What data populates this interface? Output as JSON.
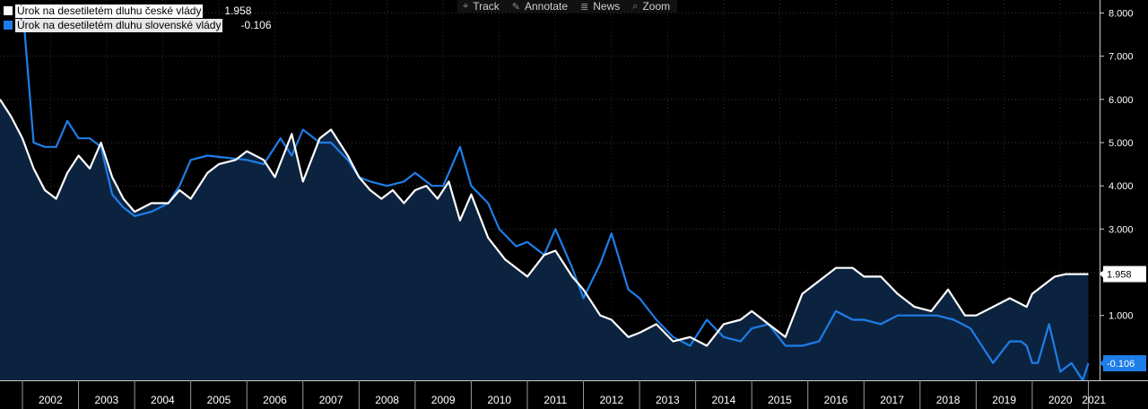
{
  "toolbar": {
    "items": [
      {
        "label": "Track",
        "icon": "crosshair-icon",
        "glyph": "⌖"
      },
      {
        "label": "Annotate",
        "icon": "pencil-icon",
        "glyph": "✎"
      },
      {
        "label": "News",
        "icon": "news-icon",
        "glyph": "≣"
      },
      {
        "label": "Zoom",
        "icon": "search-icon",
        "glyph": "⌕"
      }
    ]
  },
  "legend": [
    {
      "name": "Úrok na desetiletém dluhu české vlády",
      "value": "1.958",
      "color": "#ffffff"
    },
    {
      "name": "Úrok na desetiletém dluhu slovenské vlády",
      "value": "-0.106",
      "color": "#1e7ee8"
    }
  ],
  "chart_data": {
    "type": "line",
    "title": "",
    "xlabel": "",
    "ylabel": "",
    "x_range": [
      2001.6,
      2021.2
    ],
    "ylim": [
      -0.5,
      8.3
    ],
    "y_ticks": [
      "8.000",
      "7.000",
      "6.000",
      "5.000",
      "4.000",
      "3.000",
      "2.000",
      "1.000"
    ],
    "y_tick_values": [
      8,
      7,
      6,
      5,
      4,
      3,
      2,
      1
    ],
    "x_ticks": [
      "2002",
      "2003",
      "2004",
      "2005",
      "2006",
      "2007",
      "2008",
      "2009",
      "2010",
      "2011",
      "2012",
      "2013",
      "2014",
      "2015",
      "2016",
      "2017",
      "2018",
      "2019",
      "2020",
      "2021"
    ],
    "last_value_labels": [
      "1.958",
      "-0.106"
    ],
    "grid": true,
    "area_fill_color": "#0c2340",
    "series": [
      {
        "name": "Úrok na desetiletém dluhu české vlády",
        "color": "#ffffff",
        "x": [
          2001.6,
          2001.8,
          2002.0,
          2002.2,
          2002.4,
          2002.6,
          2002.8,
          2003.0,
          2003.2,
          2003.4,
          2003.6,
          2003.8,
          2004.0,
          2004.3,
          2004.6,
          2004.8,
          2005.0,
          2005.3,
          2005.5,
          2005.8,
          2006.0,
          2006.3,
          2006.5,
          2006.8,
          2007.0,
          2007.3,
          2007.5,
          2007.8,
          2008.0,
          2008.2,
          2008.4,
          2008.6,
          2008.8,
          2009.0,
          2009.2,
          2009.4,
          2009.6,
          2009.8,
          2010.0,
          2010.3,
          2010.6,
          2010.8,
          2011.0,
          2011.3,
          2011.5,
          2011.8,
          2012.0,
          2012.3,
          2012.5,
          2012.8,
          2013.0,
          2013.3,
          2013.6,
          2013.9,
          2014.2,
          2014.5,
          2014.8,
          2015.0,
          2015.3,
          2015.6,
          2015.9,
          2016.2,
          2016.5,
          2016.8,
          2017.0,
          2017.3,
          2017.6,
          2017.9,
          2018.2,
          2018.5,
          2018.8,
          2019.0,
          2019.3,
          2019.6,
          2019.9,
          2020.0,
          2020.2,
          2020.4,
          2020.6,
          2020.8,
          2020.95,
          2021.0
        ],
        "values": [
          6.0,
          5.6,
          5.1,
          4.4,
          3.9,
          3.7,
          4.3,
          4.7,
          4.4,
          5.0,
          4.2,
          3.7,
          3.4,
          3.6,
          3.6,
          3.9,
          3.7,
          4.3,
          4.5,
          4.6,
          4.8,
          4.6,
          4.2,
          5.2,
          4.1,
          5.1,
          5.3,
          4.7,
          4.2,
          3.9,
          3.7,
          3.9,
          3.6,
          3.9,
          4.0,
          3.7,
          4.1,
          3.2,
          3.8,
          2.8,
          2.3,
          2.1,
          1.9,
          2.4,
          2.5,
          1.9,
          1.6,
          1.0,
          0.9,
          0.5,
          0.6,
          0.8,
          0.4,
          0.5,
          0.3,
          0.8,
          0.9,
          1.1,
          0.8,
          0.5,
          1.5,
          1.8,
          2.1,
          2.1,
          1.9,
          1.9,
          1.5,
          1.2,
          1.1,
          1.6,
          1.0,
          1.0,
          1.2,
          1.4,
          1.2,
          1.5,
          1.7,
          1.9,
          1.958,
          1.958,
          1.958,
          1.958
        ]
      },
      {
        "name": "Úrok na desetiletém dluhu slovenské vlády",
        "color": "#1e7ee8",
        "x": [
          2002.0,
          2002.2,
          2002.4,
          2002.6,
          2002.8,
          2003.0,
          2003.2,
          2003.4,
          2003.6,
          2003.8,
          2004.0,
          2004.3,
          2004.6,
          2004.8,
          2005.0,
          2005.3,
          2006.0,
          2006.3,
          2006.6,
          2006.8,
          2007.0,
          2007.3,
          2007.5,
          2007.8,
          2008.0,
          2008.2,
          2008.5,
          2008.8,
          2009.0,
          2009.1,
          2009.3,
          2009.5,
          2009.8,
          2010.0,
          2010.3,
          2010.5,
          2010.8,
          2011.0,
          2011.3,
          2011.5,
          2011.8,
          2012.0,
          2012.3,
          2012.5,
          2012.8,
          2013.0,
          2013.3,
          2013.6,
          2013.9,
          2014.2,
          2014.5,
          2014.8,
          2015.0,
          2015.3,
          2015.6,
          2015.9,
          2016.2,
          2016.5,
          2016.8,
          2017.0,
          2017.3,
          2017.6,
          2017.9,
          2018.0,
          2018.3,
          2018.6,
          2018.9,
          2019.0,
          2019.3,
          2019.6,
          2019.8,
          2019.9,
          2020.0,
          2020.1,
          2020.3,
          2020.5,
          2020.7,
          2020.8,
          2020.9,
          2021.0
        ],
        "values": [
          8.2,
          5.0,
          4.9,
          4.9,
          5.5,
          5.1,
          5.1,
          4.9,
          3.8,
          3.5,
          3.3,
          3.4,
          3.6,
          4.0,
          4.6,
          4.7,
          4.6,
          4.5,
          5.1,
          4.7,
          5.3,
          5.0,
          5.0,
          4.6,
          4.2,
          4.1,
          4.0,
          4.1,
          4.3,
          4.2,
          4.0,
          4.0,
          4.9,
          4.0,
          3.6,
          3.0,
          2.6,
          2.7,
          2.4,
          3.0,
          2.1,
          1.4,
          2.2,
          2.9,
          1.6,
          1.4,
          0.9,
          0.5,
          0.3,
          0.9,
          0.5,
          0.4,
          0.7,
          0.8,
          0.3,
          0.3,
          0.4,
          1.1,
          0.9,
          0.9,
          0.8,
          1.0,
          1.0,
          1.0,
          1.0,
          0.9,
          0.7,
          0.5,
          -0.1,
          0.4,
          0.4,
          0.3,
          -0.1,
          -0.1,
          0.8,
          -0.3,
          -0.1,
          -0.3,
          -0.5,
          -0.106
        ]
      }
    ]
  }
}
